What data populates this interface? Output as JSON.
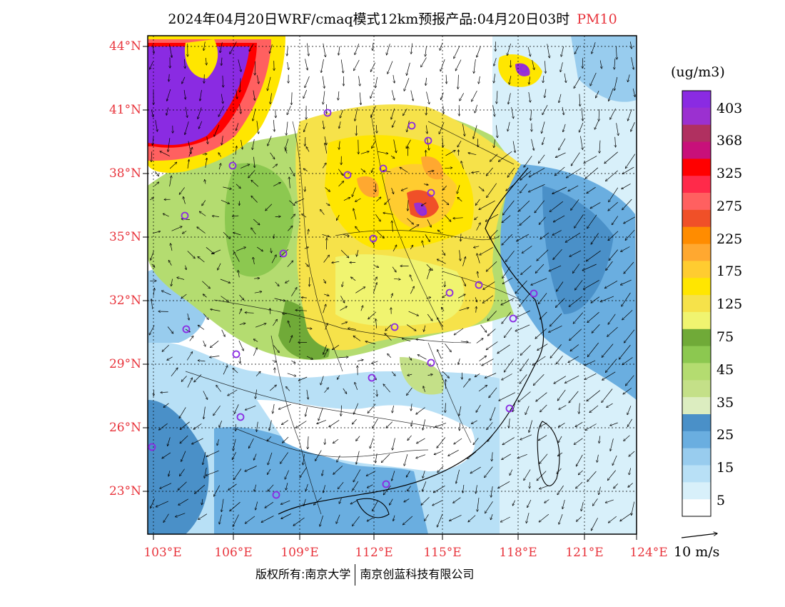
{
  "title": {
    "main": "2024年04月20日WRF/cmaq模式12km预报产品:04月20日03时",
    "pollutant": "PM10"
  },
  "axes": {
    "lat_labels": [
      "44°N",
      "41°N",
      "38°N",
      "35°N",
      "32°N",
      "29°N",
      "26°N",
      "23°N"
    ],
    "lon_labels": [
      "103°E",
      "106°E",
      "109°E",
      "112°E",
      "115°E",
      "118°E",
      "121°E",
      "124°E"
    ]
  },
  "colorbar": {
    "unit": "(ug/m3)",
    "labels": [
      "403",
      "368",
      "325",
      "275",
      "225",
      "175",
      "125",
      "75",
      "45",
      "35",
      "25",
      "15",
      "5"
    ],
    "colors": [
      "#8a2be2",
      "#9b30d0",
      "#b03060",
      "#c8107a",
      "#ff0000",
      "#ff2a4a",
      "#ff6060",
      "#f05028",
      "#ff8c00",
      "#ffa830",
      "#ffcc30",
      "#ffe600",
      "#f6e24a",
      "#f0f470",
      "#70aa38",
      "#8cc850",
      "#b4dc70",
      "#c4e088",
      "#dcedc0",
      "#4a90c8",
      "#6aaee0",
      "#98ccee",
      "#b8e0f6",
      "#d8f0fa",
      "#ffffff"
    ]
  },
  "wind": {
    "reference_label": "10 m/s"
  },
  "copyright": {
    "left": "版权所有:南京大学",
    "right": "南京创蓝科技有限公司"
  }
}
